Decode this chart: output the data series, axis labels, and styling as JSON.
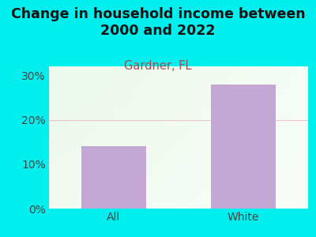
{
  "title": "Change in household income between\n2000 and 2022",
  "subtitle": "Gardner, FL",
  "categories": [
    "All",
    "White"
  ],
  "values": [
    14.0,
    28.0
  ],
  "bar_color": "#c4a8d4",
  "background_color": "#00EFEF",
  "plot_bg_color_tl": "#d8f0d0",
  "plot_bg_color_br": "#f8fdf8",
  "title_fontsize": 12.5,
  "subtitle_fontsize": 10.5,
  "subtitle_color": "#a05050",
  "tick_label_color": "#444444",
  "ylim": [
    0,
    32
  ],
  "yticks": [
    0,
    10,
    20,
    30
  ],
  "ytick_labels": [
    "0%",
    "10%",
    "20%",
    "30%"
  ],
  "grid_color": "#e8c8c8",
  "axis_label_fontsize": 10
}
